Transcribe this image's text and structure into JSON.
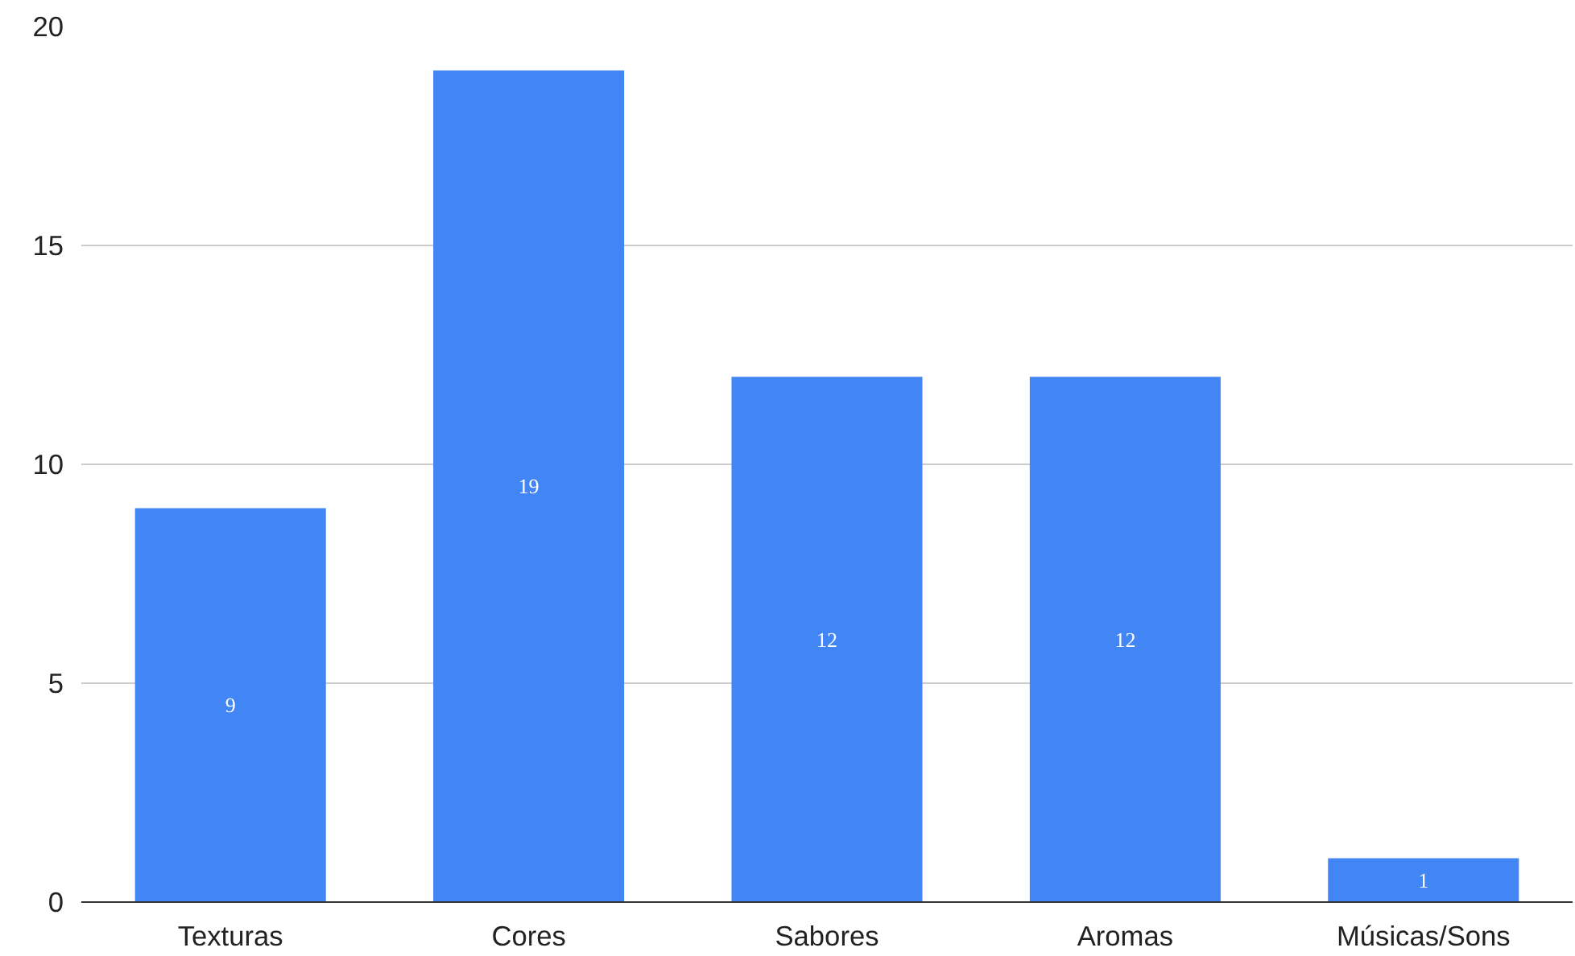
{
  "chart_data": {
    "type": "bar",
    "categories": [
      "Texturas",
      "Cores",
      "Sabores",
      "Aromas",
      "Músicas/Sons"
    ],
    "values": [
      9,
      19,
      12,
      12,
      1
    ],
    "color": "#4285f4",
    "ylim": [
      0,
      20
    ],
    "yticks": [
      0,
      5,
      10,
      15,
      20
    ],
    "grid": "y",
    "data_labels": true
  }
}
